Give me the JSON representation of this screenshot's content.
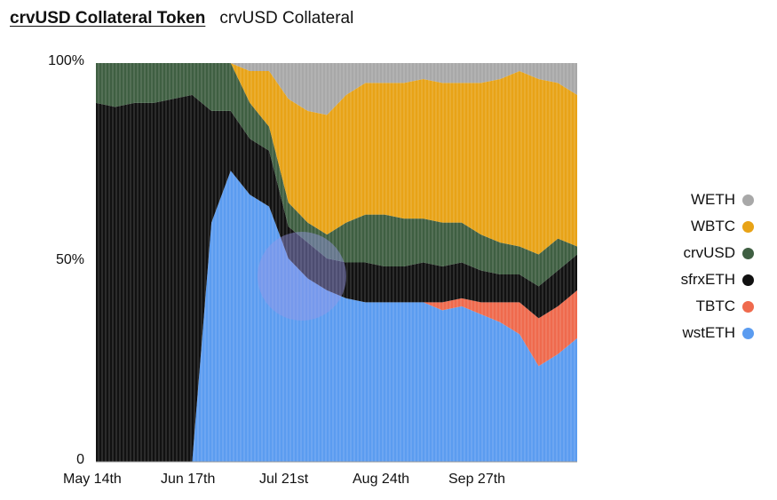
{
  "header": {
    "title": "crvUSD Collateral Token",
    "subtitle": "crvUSD Collateral"
  },
  "chart_data": {
    "type": "area",
    "stacked": "percent",
    "title": "crvUSD Collateral",
    "ylim": [
      0,
      100
    ],
    "yticks": [
      "100%",
      "50%",
      "0"
    ],
    "xticks": [
      "May 14th",
      "Jun 17th",
      "Jul 21st",
      "Aug 24th",
      "Sep 27th"
    ],
    "legend_position": "right",
    "grid": false,
    "x": [
      "May 14",
      "May 21",
      "May 28",
      "Jun 4",
      "Jun 11",
      "Jun 17",
      "Jun 24",
      "Jul 1",
      "Jul 8",
      "Jul 15",
      "Jul 21",
      "Jul 28",
      "Aug 4",
      "Aug 11",
      "Aug 18",
      "Aug 24",
      "Aug 31",
      "Sep 7",
      "Sep 14",
      "Sep 21",
      "Sep 27",
      "Oct 4",
      "Oct 11",
      "Oct 18",
      "Oct 25",
      "Nov 1"
    ],
    "series": [
      {
        "name": "wstETH",
        "color": "#5b9cf0",
        "values": [
          0,
          0,
          0,
          0,
          0,
          0,
          60,
          73,
          67,
          64,
          51,
          46,
          43,
          41,
          40,
          40,
          40,
          40,
          38,
          39,
          37,
          35,
          32,
          24,
          27,
          31
        ]
      },
      {
        "name": "TBTC",
        "color": "#ef6a4d",
        "values": [
          0,
          0,
          0,
          0,
          0,
          0,
          0,
          0,
          0,
          0,
          0,
          0,
          0,
          0,
          0,
          0,
          0,
          0,
          2,
          2,
          3,
          5,
          8,
          12,
          12,
          12
        ]
      },
      {
        "name": "sfrxETH",
        "color": "#111111",
        "values": [
          90,
          89,
          90,
          90,
          91,
          92,
          28,
          15,
          14,
          14,
          8,
          9,
          8,
          9,
          10,
          9,
          9,
          10,
          9,
          9,
          8,
          7,
          7,
          8,
          9,
          9
        ]
      },
      {
        "name": "crvUSD",
        "color": "#3f5f42",
        "values": [
          10,
          11,
          10,
          10,
          9,
          8,
          12,
          12,
          9,
          6,
          6,
          5,
          6,
          10,
          12,
          13,
          12,
          11,
          11,
          10,
          9,
          8,
          7,
          8,
          8,
          2
        ]
      },
      {
        "name": "WBTC",
        "color": "#e8a317",
        "values": [
          0,
          0,
          0,
          0,
          0,
          0,
          0,
          0,
          8,
          14,
          26,
          28,
          30,
          32,
          33,
          33,
          34,
          35,
          35,
          35,
          38,
          41,
          44,
          44,
          39,
          38
        ]
      },
      {
        "name": "WETH",
        "color": "#a8a8a8",
        "values": [
          0,
          0,
          0,
          0,
          0,
          0,
          0,
          0,
          2,
          2,
          9,
          12,
          13,
          8,
          5,
          5,
          5,
          4,
          5,
          5,
          5,
          4,
          2,
          4,
          5,
          8
        ]
      }
    ]
  },
  "legend": [
    {
      "label": "WETH",
      "color": "#a8a8a8"
    },
    {
      "label": "WBTC",
      "color": "#e8a317"
    },
    {
      "label": "crvUSD",
      "color": "#3f5f42"
    },
    {
      "label": "sfrxETH",
      "color": "#111111"
    },
    {
      "label": "TBTC",
      "color": "#ef6a4d"
    },
    {
      "label": "wstETH",
      "color": "#5b9cf0"
    }
  ]
}
